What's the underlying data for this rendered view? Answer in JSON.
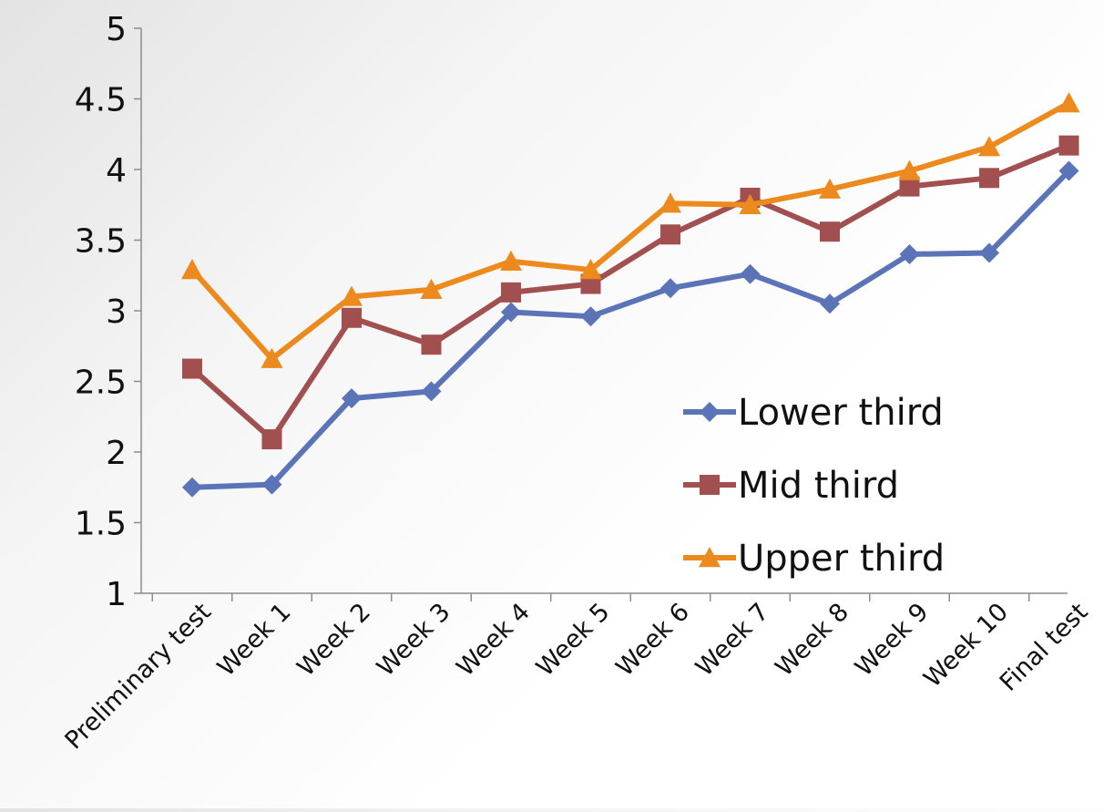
{
  "chart_data": {
    "type": "line",
    "title": "",
    "xlabel": "",
    "ylabel": "",
    "categories": [
      "Preliminary test",
      "Week 1",
      "Week 2",
      "Week 3",
      "Week 4",
      "Week 5",
      "Week 6",
      "Week 7",
      "Week 8",
      "Week 9",
      "Week 10",
      "Final test"
    ],
    "ylim": [
      1,
      5
    ],
    "y_ticks": [
      "1",
      "1.5",
      "2",
      "2.5",
      "3",
      "3.5",
      "4",
      "4.5",
      "5"
    ],
    "grid": false,
    "legend_position": "bottom-right, inside plot",
    "series": [
      {
        "name": "Lower third",
        "color": "#5b74b7",
        "marker": "diamond",
        "values": [
          1.75,
          1.77,
          2.38,
          2.43,
          2.99,
          2.96,
          3.16,
          3.26,
          3.05,
          3.4,
          3.41,
          3.99
        ]
      },
      {
        "name": "Mid third",
        "color": "#a24f4f",
        "marker": "square",
        "values": [
          2.59,
          2.09,
          2.95,
          2.76,
          3.13,
          3.19,
          3.54,
          3.8,
          3.56,
          3.88,
          3.94,
          4.17
        ]
      },
      {
        "name": "Upper third",
        "color": "#ec8a1e",
        "marker": "triangle",
        "values": [
          3.29,
          2.66,
          3.1,
          3.15,
          3.35,
          3.29,
          3.76,
          3.75,
          3.86,
          3.99,
          4.16,
          4.47
        ]
      }
    ]
  }
}
